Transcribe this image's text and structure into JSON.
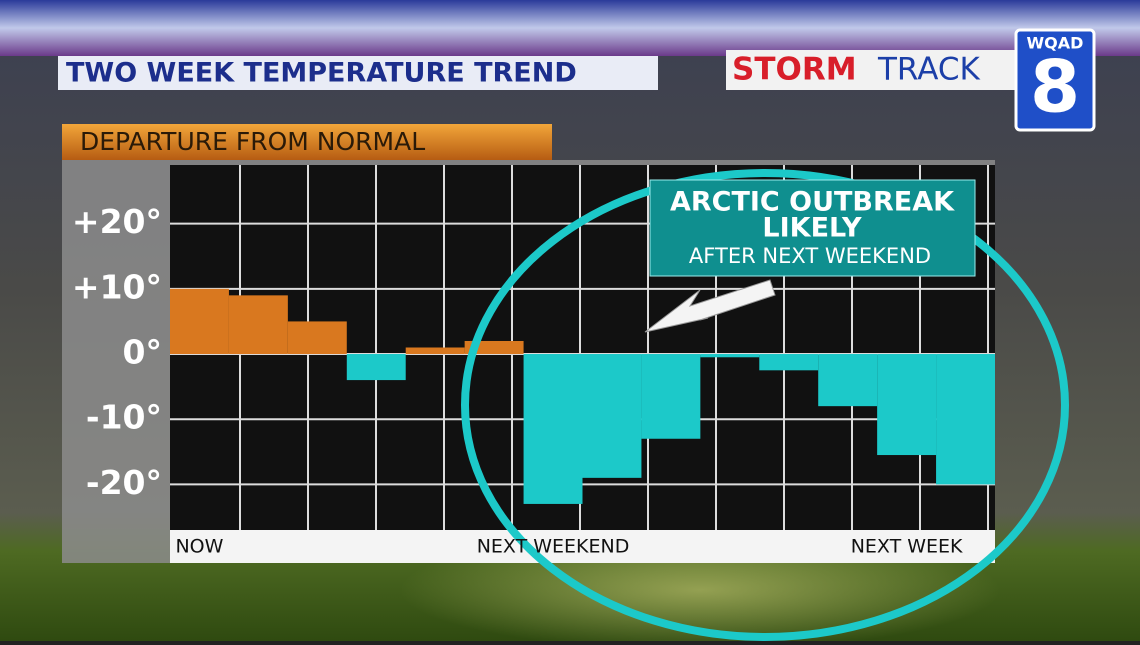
{
  "chart_data": {
    "type": "bar",
    "title": "TWO WEEK TEMPERATURE TREND",
    "subtitle": "DEPARTURE FROM NORMAL",
    "brand": {
      "storm": "STORM",
      "track": "TRACK",
      "station": "WQAD",
      "channel": "8"
    },
    "annotation": {
      "line1": "ARCTIC OUTBREAK",
      "line2": "LIKELY",
      "line3": "AFTER NEXT WEEKEND"
    },
    "categories": [
      "NOW",
      null,
      null,
      null,
      null,
      null,
      "NEXT WEEKEND",
      null,
      null,
      null,
      null,
      null,
      "NEXT WEEK",
      null
    ],
    "values": [
      10,
      9,
      5,
      -4,
      1,
      2,
      -23,
      -19,
      -13,
      -0.5,
      -2.5,
      -8,
      -15.5,
      -20
    ],
    "positive_color": "#d9781f",
    "negative_color": "#1cc9c9",
    "ylim": [
      -27,
      29
    ],
    "yticks": [
      {
        "value": 20,
        "label": "+20°"
      },
      {
        "value": 10,
        "label": "+10°"
      },
      {
        "value": 0,
        "label": "0°"
      },
      {
        "value": -10,
        "label": "-10°"
      },
      {
        "value": -20,
        "label": "-20°"
      }
    ],
    "grid": true
  }
}
